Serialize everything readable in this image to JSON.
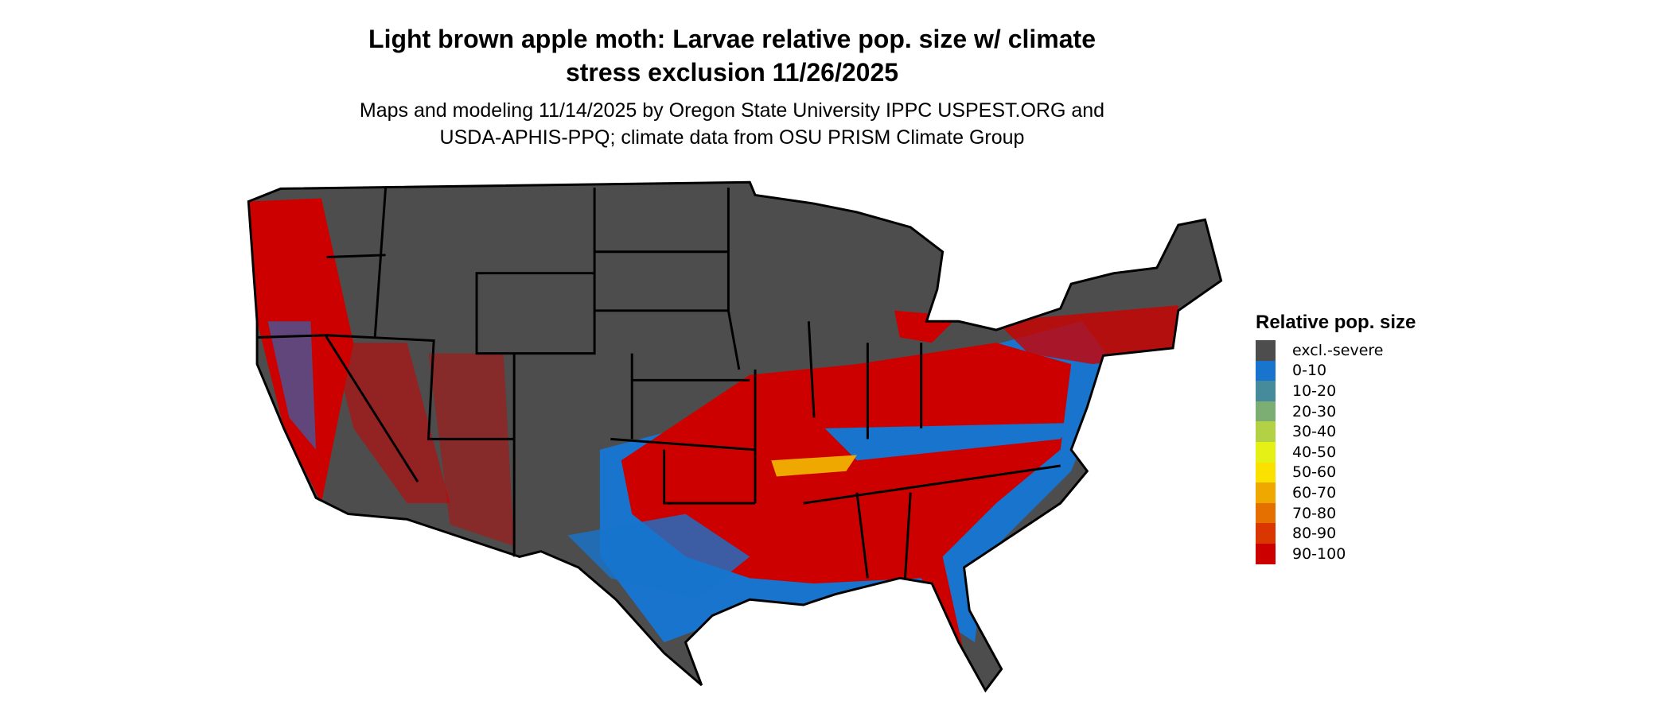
{
  "title_line1": "Light brown apple moth: Larvae relative pop. size w/ climate",
  "title_line2": "stress exclusion 11/26/2025",
  "subtitle_line1": "Maps and modeling 11/14/2025 by Oregon State University IPPC USPEST.ORG and",
  "subtitle_line2": "USDA-APHIS-PPQ; climate data from OSU PRISM Climate Group",
  "legend": {
    "title": "Relative pop. size",
    "items": [
      {
        "label": "excl.-severe",
        "color": "#4d4d4d"
      },
      {
        "label": "0-10",
        "color": "#1874cd"
      },
      {
        "label": "10-20",
        "color": "#458b9b"
      },
      {
        "label": "20-30",
        "color": "#7cad72"
      },
      {
        "label": "30-40",
        "color": "#b2d145"
      },
      {
        "label": "40-50",
        "color": "#e5f016"
      },
      {
        "label": "50-60",
        "color": "#fae100"
      },
      {
        "label": "60-70",
        "color": "#efa800"
      },
      {
        "label": "70-80",
        "color": "#e57000"
      },
      {
        "label": "80-90",
        "color": "#d93600"
      },
      {
        "label": "90-100",
        "color": "#cd0000"
      }
    ]
  },
  "map": {
    "region": "Contiguous United States",
    "outline_color": "#000000"
  }
}
